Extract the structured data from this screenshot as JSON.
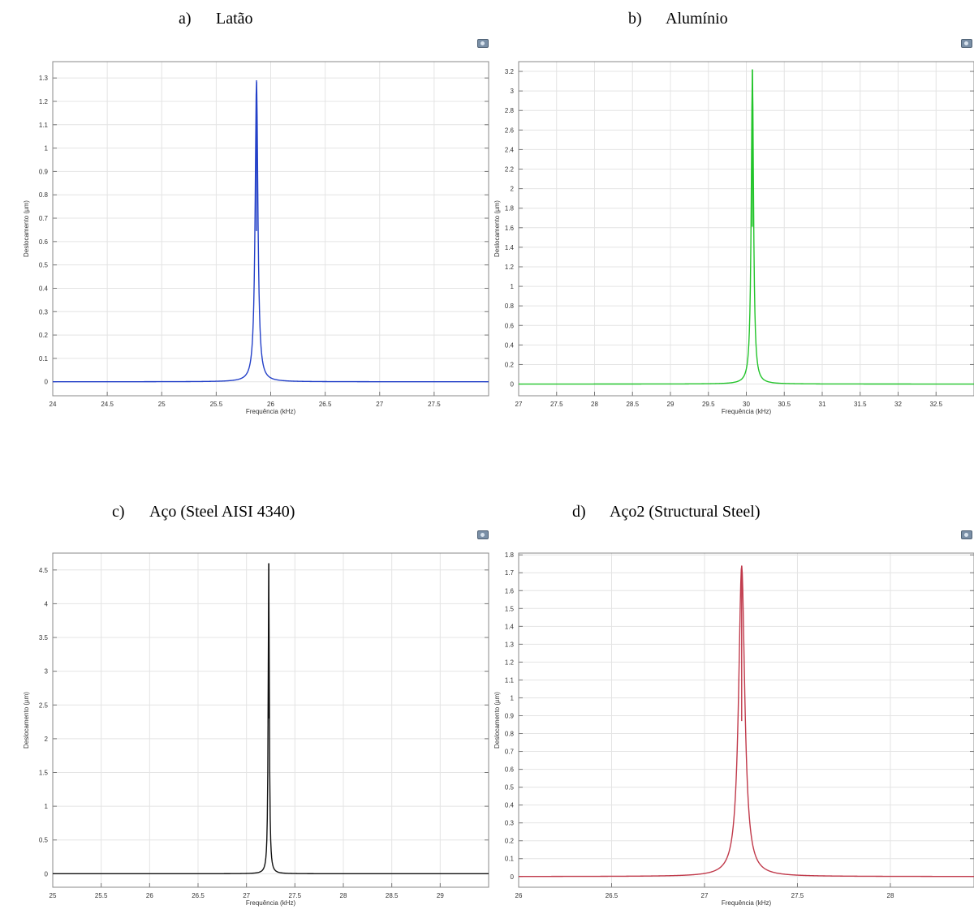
{
  "panels": [
    {
      "label": "a)",
      "title": "Latão",
      "color": "#2340c8"
    },
    {
      "label": "b)",
      "title": "Alumínio",
      "color": "#22c42a"
    },
    {
      "label": "c)",
      "title": "Aço (Steel AISI 4340)",
      "color": "#111111"
    },
    {
      "label": "d)",
      "title": "Aço2 (Structural Steel)",
      "color": "#c0394a"
    }
  ],
  "toolbar_icon": "camera-icon",
  "chart_data": [
    {
      "type": "line",
      "title": "Latão",
      "xlabel": "Frequência (kHz)",
      "ylabel": "Deslocamento (µm)",
      "xlim": [
        24,
        28
      ],
      "ylim": [
        -0.06,
        1.37
      ],
      "grid": true,
      "xticks": [
        "24",
        "24.5",
        "25",
        "25.5",
        "26",
        "26.5",
        "27",
        "27.5"
      ],
      "yticks": [
        "0",
        "0.1",
        "0.2",
        "0.3",
        "0.4",
        "0.5",
        "0.6",
        "0.7",
        "0.8",
        "0.9",
        "1",
        "1.1",
        "1.2",
        "1.3"
      ],
      "series": [
        {
          "peak_frequency": 25.87,
          "peak_value": 1.29,
          "baseline": 0.0,
          "half_width": 0.015,
          "color": "#2340c8"
        }
      ]
    },
    {
      "type": "line",
      "title": "Alumínio",
      "xlabel": "Frequência (kHz)",
      "ylabel": "Deslocamento (µm)",
      "xlim": [
        27,
        33
      ],
      "ylim": [
        -0.12,
        3.3
      ],
      "grid": true,
      "xticks": [
        "27",
        "27.5",
        "28",
        "28.5",
        "29",
        "29.5",
        "30",
        "30.5",
        "31",
        "31.5",
        "32",
        "32.5"
      ],
      "yticks": [
        "0",
        "0.2",
        "0.4",
        "0.6",
        "0.8",
        "1",
        "1.2",
        "1.4",
        "1.6",
        "1.8",
        "2",
        "2.2",
        "2.4",
        "2.6",
        "2.8",
        "3",
        "3.2"
      ],
      "series": [
        {
          "peak_frequency": 30.08,
          "peak_value": 3.22,
          "baseline": 0.0,
          "half_width": 0.018,
          "color": "#22c42a"
        }
      ]
    },
    {
      "type": "line",
      "title": "Aço (Steel AISI 4340)",
      "xlabel": "Frequência (kHz)",
      "ylabel": "Deslocamento (µm)",
      "xlim": [
        25,
        29.5
      ],
      "ylim": [
        -0.2,
        4.75
      ],
      "grid": true,
      "xticks": [
        "25",
        "25.5",
        "26",
        "26.5",
        "27",
        "27.5",
        "28",
        "28.5",
        "29"
      ],
      "yticks": [
        "0",
        "0.5",
        "1",
        "1.5",
        "2",
        "2.5",
        "3",
        "3.5",
        "4",
        "4.5"
      ],
      "series": [
        {
          "peak_frequency": 27.23,
          "peak_value": 4.6,
          "baseline": 0.0,
          "half_width": 0.007,
          "color": "#111111"
        }
      ]
    },
    {
      "type": "line",
      "title": "Aço2 (Structural Steel)",
      "xlabel": "Frequência (kHz)",
      "ylabel": "Deslocamento (µm)",
      "xlim": [
        26,
        28.45
      ],
      "ylim": [
        -0.06,
        1.81
      ],
      "grid": true,
      "xticks": [
        "26",
        "26.5",
        "27",
        "27.5",
        "28"
      ],
      "yticks": [
        "0",
        "0.1",
        "0.2",
        "0.3",
        "0.4",
        "0.5",
        "0.6",
        "0.7",
        "0.8",
        "0.9",
        "1",
        "1.1",
        "1.2",
        "1.3",
        "1.4",
        "1.5",
        "1.6",
        "1.7",
        "1.8"
      ],
      "series": [
        {
          "peak_frequency": 27.2,
          "peak_value": 1.74,
          "baseline": 0.0,
          "half_width": 0.02,
          "color": "#c0394a"
        }
      ]
    }
  ]
}
